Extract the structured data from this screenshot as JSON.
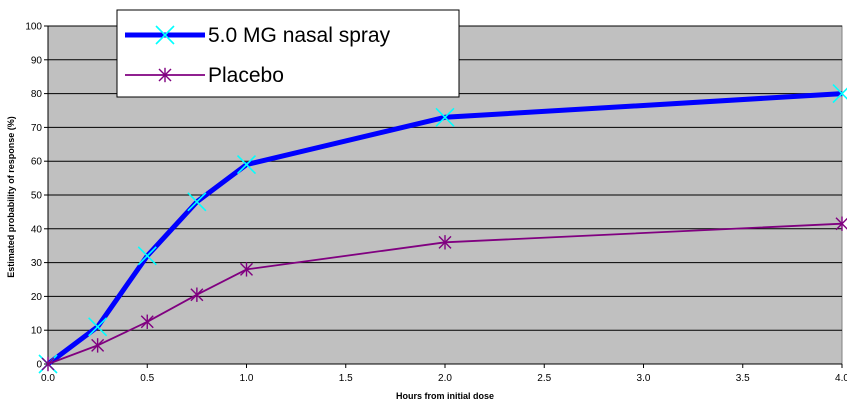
{
  "chart_data": {
    "type": "line",
    "title": "",
    "xlabel": "Hours from initial dose",
    "ylabel": "Estimated probability of response (%)",
    "xlim": [
      0,
      4
    ],
    "ylim": [
      0,
      100
    ],
    "x_ticks": [
      "0.0",
      "0.5",
      "1.0",
      "1.5",
      "2.0",
      "2.5",
      "3.0",
      "3.5",
      "4.0"
    ],
    "y_ticks": [
      "0",
      "10",
      "20",
      "30",
      "40",
      "50",
      "60",
      "70",
      "80",
      "90",
      "100"
    ],
    "grid": "horizontal",
    "legend_placement": "top-left",
    "plot_background": "#c0c0c0",
    "series": [
      {
        "name": "5.0 MG nasal spray",
        "color": "#0000ff",
        "marker_color": "#00ffff",
        "marker": "x",
        "x": [
          0,
          0.25,
          0.5,
          0.75,
          1.0,
          2.0,
          4.0
        ],
        "y": [
          0,
          11,
          32,
          48,
          59,
          73,
          80
        ]
      },
      {
        "name": "Placebo",
        "color": "#800080",
        "marker_color": "#800080",
        "marker": "asterisk",
        "x": [
          0,
          0.25,
          0.5,
          0.75,
          1.0,
          2.0,
          4.0
        ],
        "y": [
          0,
          5.5,
          12.5,
          20.5,
          28,
          36,
          41.5
        ]
      }
    ]
  }
}
